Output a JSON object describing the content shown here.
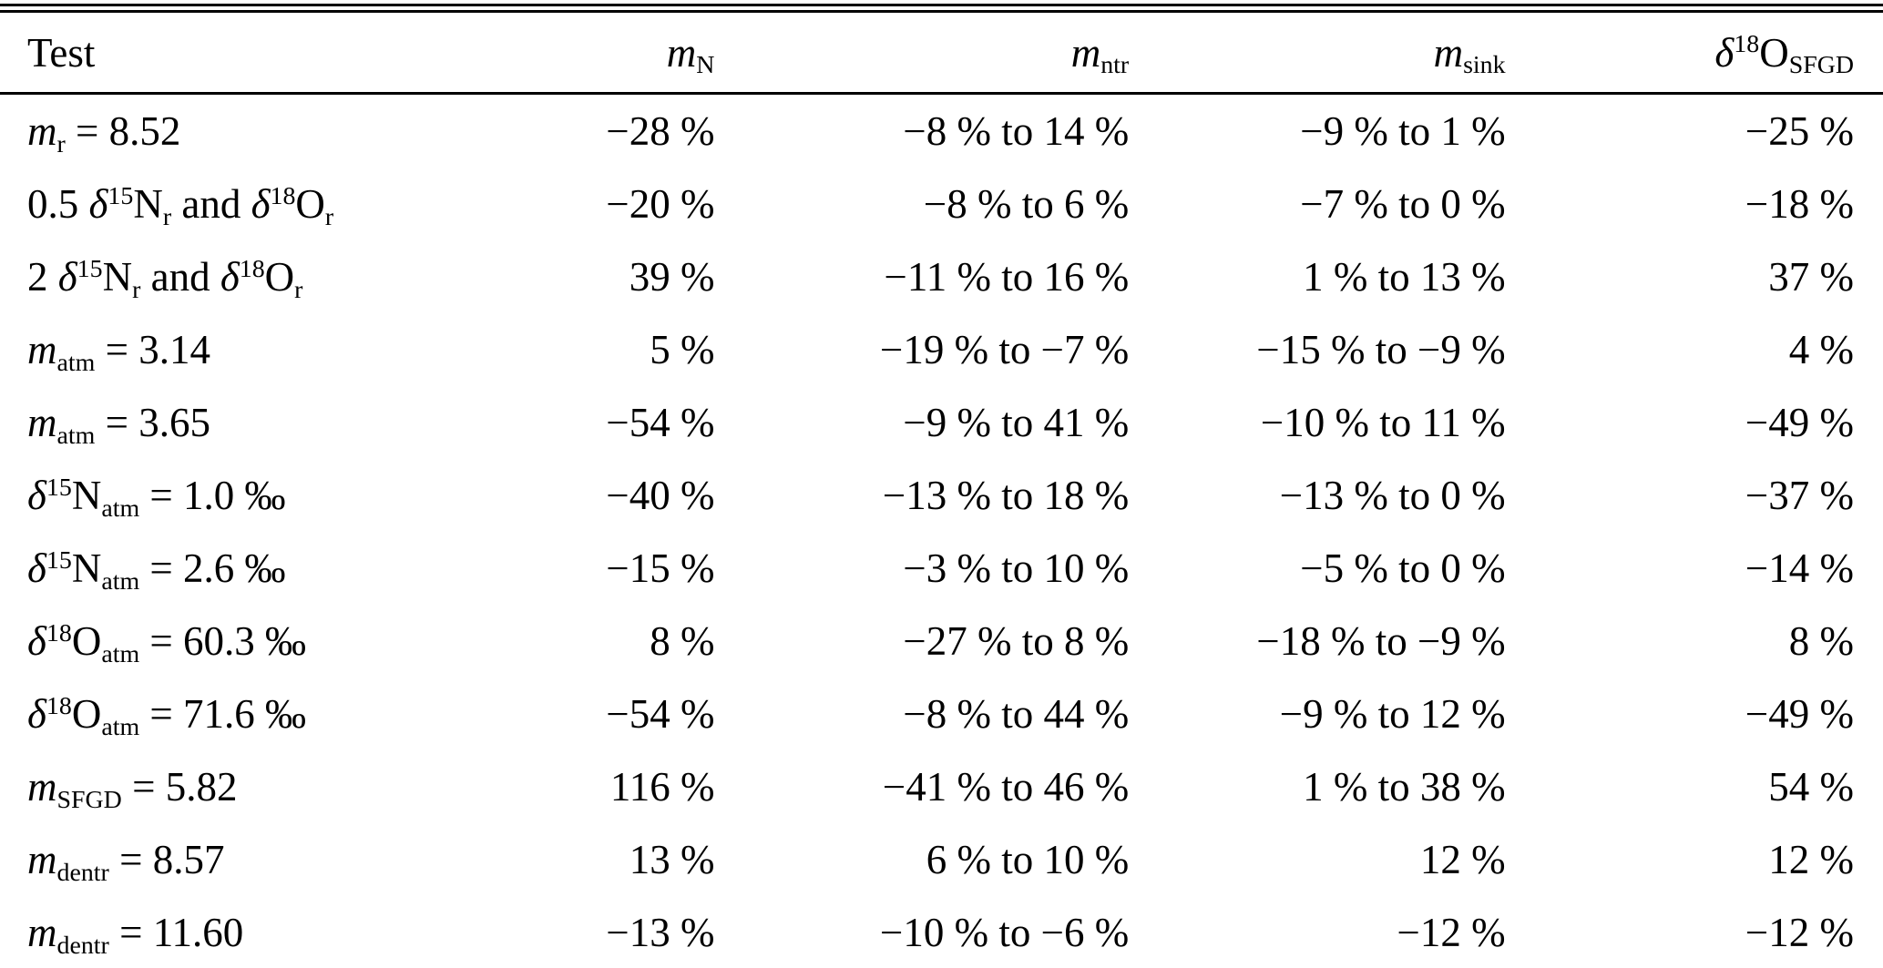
{
  "page": {
    "background": "#ffffff",
    "text_color": "#000000"
  },
  "table": {
    "headers": [
      {
        "name": "test",
        "content": "Test"
      },
      {
        "name": "m_N",
        "content": [
          {
            "t": "m",
            "s": "i"
          },
          {
            "t": "N",
            "s": "sub"
          }
        ]
      },
      {
        "name": "m_ntr",
        "content": [
          {
            "t": "m",
            "s": "i"
          },
          {
            "t": "ntr",
            "s": "sub"
          }
        ]
      },
      {
        "name": "m_sink",
        "content": [
          {
            "t": "m",
            "s": "i"
          },
          {
            "t": "sink",
            "s": "sub"
          }
        ]
      },
      {
        "name": "d18O_SFGD",
        "content": [
          {
            "t": "δ",
            "s": "i"
          },
          {
            "t": "18",
            "s": "sup"
          },
          {
            "t": "O"
          },
          {
            "t": "SFGD",
            "s": "sub"
          }
        ]
      }
    ],
    "rows": [
      {
        "test": [
          {
            "t": "m",
            "s": "i"
          },
          {
            "t": "r",
            "s": "sub"
          },
          {
            "t": " = 8.52"
          }
        ],
        "values": [
          "−28 %",
          "−8 % to 14 %",
          "−9 % to 1 %",
          "−25 %"
        ]
      },
      {
        "test": [
          {
            "t": "0.5 "
          },
          {
            "t": "δ",
            "s": "i"
          },
          {
            "t": "15",
            "s": "sup"
          },
          {
            "t": "N"
          },
          {
            "t": "r",
            "s": "sub"
          },
          {
            "t": " and "
          },
          {
            "t": "δ",
            "s": "i"
          },
          {
            "t": "18",
            "s": "sup"
          },
          {
            "t": "O"
          },
          {
            "t": "r",
            "s": "sub"
          }
        ],
        "values": [
          "−20 %",
          "−8 % to 6 %",
          "−7 % to 0 %",
          "−18 %"
        ]
      },
      {
        "test": [
          {
            "t": "2 "
          },
          {
            "t": "δ",
            "s": "i"
          },
          {
            "t": "15",
            "s": "sup"
          },
          {
            "t": "N"
          },
          {
            "t": "r",
            "s": "sub"
          },
          {
            "t": " and "
          },
          {
            "t": "δ",
            "s": "i"
          },
          {
            "t": "18",
            "s": "sup"
          },
          {
            "t": "O"
          },
          {
            "t": "r",
            "s": "sub"
          }
        ],
        "values": [
          "39 %",
          "−11 % to 16 %",
          "1 % to 13 %",
          "37 %"
        ]
      },
      {
        "test": [
          {
            "t": "m",
            "s": "i"
          },
          {
            "t": "atm",
            "s": "sub"
          },
          {
            "t": " = 3.14"
          }
        ],
        "values": [
          "5 %",
          "−19 % to −7 %",
          "−15 % to −9 %",
          "4 %"
        ]
      },
      {
        "test": [
          {
            "t": "m",
            "s": "i"
          },
          {
            "t": "atm",
            "s": "sub"
          },
          {
            "t": " = 3.65"
          }
        ],
        "values": [
          "−54 %",
          "−9 % to 41 %",
          "−10 % to 11 %",
          "−49 %"
        ]
      },
      {
        "test": [
          {
            "t": "δ",
            "s": "i"
          },
          {
            "t": "15",
            "s": "sup"
          },
          {
            "t": "N"
          },
          {
            "t": "atm",
            "s": "sub"
          },
          {
            "t": " = 1.0 ‰"
          }
        ],
        "values": [
          "−40 %",
          "−13 % to 18 %",
          "−13 % to 0 %",
          "−37 %"
        ]
      },
      {
        "test": [
          {
            "t": "δ",
            "s": "i"
          },
          {
            "t": "15",
            "s": "sup"
          },
          {
            "t": "N"
          },
          {
            "t": "atm",
            "s": "sub"
          },
          {
            "t": " = 2.6 ‰"
          }
        ],
        "values": [
          "−15 %",
          "−3 % to 10 %",
          "−5 % to 0 %",
          "−14 %"
        ]
      },
      {
        "test": [
          {
            "t": "δ",
            "s": "i"
          },
          {
            "t": "18",
            "s": "sup"
          },
          {
            "t": "O"
          },
          {
            "t": "atm",
            "s": "sub"
          },
          {
            "t": " = 60.3 ‰"
          }
        ],
        "values": [
          "8 %",
          "−27 % to 8 %",
          "−18 % to −9 %",
          "8 %"
        ]
      },
      {
        "test": [
          {
            "t": "δ",
            "s": "i"
          },
          {
            "t": "18",
            "s": "sup"
          },
          {
            "t": "O"
          },
          {
            "t": "atm",
            "s": "sub"
          },
          {
            "t": " = 71.6 ‰"
          }
        ],
        "values": [
          "−54 %",
          "−8 % to 44 %",
          "−9 % to 12 %",
          "−49 %"
        ]
      },
      {
        "test": [
          {
            "t": "m",
            "s": "i"
          },
          {
            "t": "SFGD",
            "s": "sub"
          },
          {
            "t": " = 5.82"
          }
        ],
        "values": [
          "116 %",
          "−41 % to 46 %",
          "1 % to 38 %",
          "54 %"
        ]
      },
      {
        "test": [
          {
            "t": "m",
            "s": "i"
          },
          {
            "t": "dentr",
            "s": "sub"
          },
          {
            "t": " = 8.57"
          }
        ],
        "values": [
          "13 %",
          "6 % to 10 %",
          "12 %",
          "12 %"
        ]
      },
      {
        "test": [
          {
            "t": "m",
            "s": "i"
          },
          {
            "t": "dentr",
            "s": "sub"
          },
          {
            "t": " = 11.60"
          }
        ],
        "values": [
          "−13 %",
          "−10 % to −6 %",
          "−12 %",
          "−12 %"
        ]
      }
    ]
  }
}
